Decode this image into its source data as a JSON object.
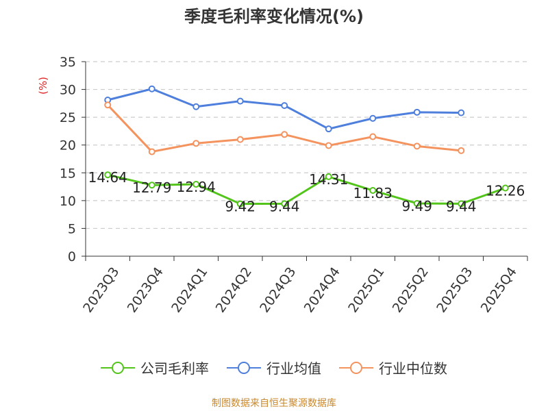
{
  "chart_data": {
    "type": "line",
    "title": "季度毛利率变化情况(%)",
    "ylabel": "(%)",
    "categories": [
      "2023Q3",
      "2023Q4",
      "2024Q1",
      "2024Q2",
      "2024Q3",
      "2024Q4",
      "2025Q1",
      "2025Q2",
      "2025Q3",
      "2025Q4"
    ],
    "ylim": [
      0,
      35
    ],
    "yticks": [
      0,
      5,
      10,
      15,
      20,
      25,
      30,
      35
    ],
    "grid": true,
    "legend_position": "bottom",
    "series": [
      {
        "name": "公司毛利率",
        "color": "#52c41a",
        "show_labels": true,
        "values": [
          14.64,
          12.79,
          12.94,
          9.42,
          9.44,
          14.31,
          11.83,
          9.49,
          9.44,
          12.26
        ]
      },
      {
        "name": "行业均值",
        "color": "#4e7fdc",
        "show_labels": false,
        "values": [
          28.1,
          30.1,
          26.9,
          27.9,
          27.1,
          22.9,
          24.8,
          25.9,
          25.8,
          null
        ]
      },
      {
        "name": "行业中位数",
        "color": "#f4935e",
        "show_labels": false,
        "values": [
          27.2,
          18.8,
          20.3,
          21.0,
          21.9,
          19.9,
          21.5,
          19.8,
          19.0,
          null
        ]
      }
    ]
  },
  "footer": {
    "source": "制图数据来自恒生聚源数据库"
  }
}
